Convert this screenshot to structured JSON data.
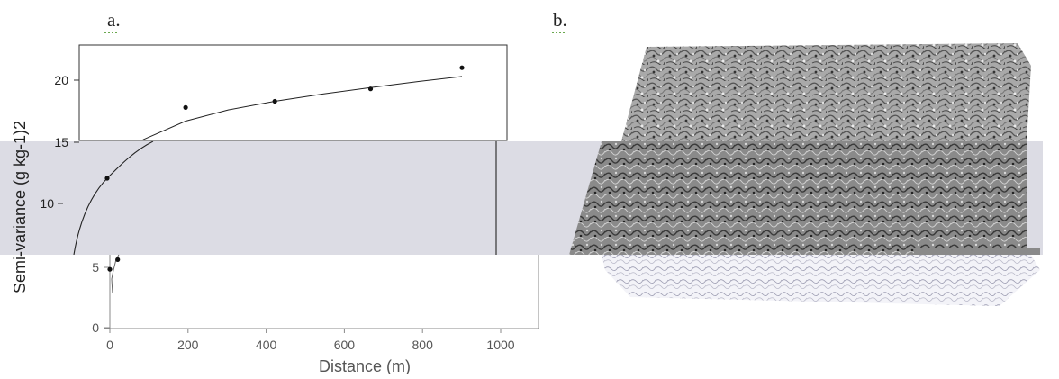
{
  "panels": {
    "a_label": "a.",
    "b_label": "b."
  },
  "chart_data": [
    {
      "type": "scatter",
      "panel": "a.",
      "title": "",
      "xlabel": "Distance (m)",
      "ylabel": "Semi-variance (g kg-1)2",
      "xlim": [
        0,
        1050
      ],
      "ylim": [
        0,
        23
      ],
      "x_ticks": [
        0,
        200,
        400,
        600,
        800,
        1000
      ],
      "y_ticks": [
        0,
        5,
        10,
        15,
        20
      ],
      "grid": false,
      "legend": "none",
      "series": [
        {
          "type": "scatter",
          "x": [
            0,
            20,
            250,
            460,
            685,
            900
          ],
          "y": [
            4.8,
            5.6,
            17.8,
            18.3,
            19.3,
            21.0
          ]
        }
      ],
      "fit_curve": {
        "x": [
          3,
          10,
          30,
          60,
          100,
          150,
          250,
          350,
          460,
          575,
          685,
          800,
          900
        ],
        "y": [
          2.5,
          6.0,
          10.0,
          12.5,
          14.0,
          15.2,
          16.7,
          17.6,
          18.3,
          18.9,
          19.4,
          19.9,
          20.3
        ]
      },
      "colors": {
        "axis": "#444444",
        "marker": "#111111",
        "overlay": "#dcdce4"
      }
    },
    {
      "type": "image",
      "panel": "b.",
      "description_visible_only": "3D shaded surface"
    }
  ]
}
